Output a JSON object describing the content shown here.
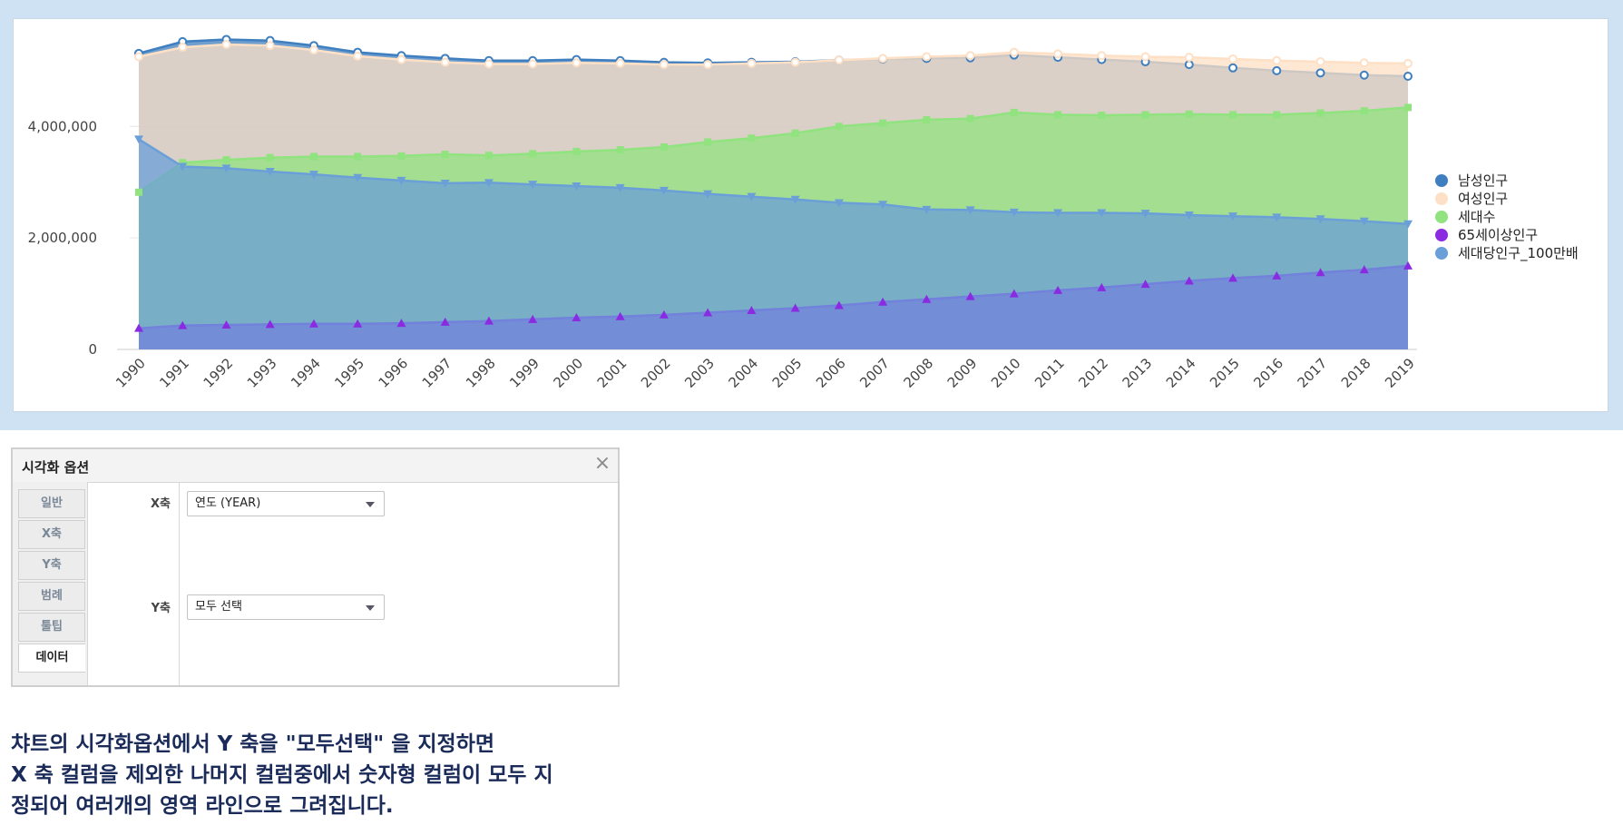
{
  "chart_data": {
    "type": "area",
    "categories": [
      "1990",
      "1991",
      "1992",
      "1993",
      "1994",
      "1995",
      "1996",
      "1997",
      "1998",
      "1999",
      "2000",
      "2001",
      "2002",
      "2003",
      "2004",
      "2005",
      "2006",
      "2007",
      "2008",
      "2009",
      "2010",
      "2011",
      "2012",
      "2013",
      "2014",
      "2015",
      "2016",
      "2017",
      "2018",
      "2019"
    ],
    "ylim": [
      0,
      5600000
    ],
    "yticks": [
      "0",
      "2,000,000",
      "4,000,000"
    ],
    "ytick_values": [
      0,
      2000000,
      4000000
    ],
    "grid": true,
    "legend_position": "right",
    "series": [
      {
        "name": "남성인구",
        "color": "#3f7fbf",
        "marker": "circle",
        "values": [
          5310000,
          5520000,
          5560000,
          5540000,
          5450000,
          5330000,
          5270000,
          5220000,
          5180000,
          5180000,
          5200000,
          5180000,
          5150000,
          5140000,
          5150000,
          5160000,
          5190000,
          5210000,
          5220000,
          5230000,
          5280000,
          5240000,
          5200000,
          5160000,
          5110000,
          5050000,
          5000000,
          4960000,
          4920000,
          4900000
        ]
      },
      {
        "name": "여성인구",
        "color": "#fde0c5",
        "marker": "circle",
        "values": [
          5250000,
          5420000,
          5470000,
          5450000,
          5370000,
          5260000,
          5200000,
          5150000,
          5120000,
          5120000,
          5140000,
          5130000,
          5110000,
          5110000,
          5130000,
          5150000,
          5190000,
          5220000,
          5250000,
          5270000,
          5330000,
          5300000,
          5270000,
          5250000,
          5240000,
          5210000,
          5180000,
          5160000,
          5140000,
          5130000
        ]
      },
      {
        "name": "세대수",
        "color": "#90e37f",
        "marker": "square",
        "values": [
          2820000,
          3350000,
          3400000,
          3440000,
          3460000,
          3460000,
          3470000,
          3500000,
          3480000,
          3510000,
          3550000,
          3580000,
          3630000,
          3720000,
          3790000,
          3880000,
          4000000,
          4060000,
          4120000,
          4140000,
          4250000,
          4210000,
          4200000,
          4210000,
          4220000,
          4210000,
          4210000,
          4240000,
          4280000,
          4340000
        ]
      },
      {
        "name": "65세이상인구",
        "color": "#8a2be2",
        "marker": "triangle-up",
        "values": [
          380000,
          430000,
          440000,
          450000,
          460000,
          460000,
          470000,
          490000,
          510000,
          540000,
          570000,
          590000,
          620000,
          660000,
          700000,
          740000,
          790000,
          850000,
          900000,
          950000,
          1000000,
          1060000,
          1110000,
          1170000,
          1230000,
          1280000,
          1320000,
          1380000,
          1430000,
          1500000
        ]
      },
      {
        "name": "세대당인구_100만배",
        "color": "#6a9fd8",
        "marker": "triangle-down",
        "values": [
          3770000,
          3280000,
          3250000,
          3190000,
          3140000,
          3080000,
          3030000,
          2980000,
          2990000,
          2960000,
          2930000,
          2900000,
          2850000,
          2790000,
          2740000,
          2690000,
          2630000,
          2600000,
          2510000,
          2500000,
          2460000,
          2450000,
          2450000,
          2440000,
          2410000,
          2390000,
          2370000,
          2340000,
          2300000,
          2250000
        ]
      }
    ]
  },
  "panel": {
    "title": "시각화 옵션",
    "close_label": "×",
    "tabs": [
      "일반",
      "X축",
      "Y축",
      "범례",
      "툴팁",
      "데이터"
    ],
    "active_tab_index": 5,
    "x_axis_label": "X축",
    "x_axis_value": "연도 (YEAR)",
    "y_axis_label": "Y축",
    "y_axis_value": "모두 선택"
  },
  "caption": [
    "챠트의 시각화옵션에서 Y 축을 \"모두선택\" 을 지정하면",
    "X 축 컬럼을 제외한 나머지 컬럼중에서 숫자형 컬럼이 모두 지",
    "정되어 여러개의 영역 라인으로 그려집니다."
  ]
}
